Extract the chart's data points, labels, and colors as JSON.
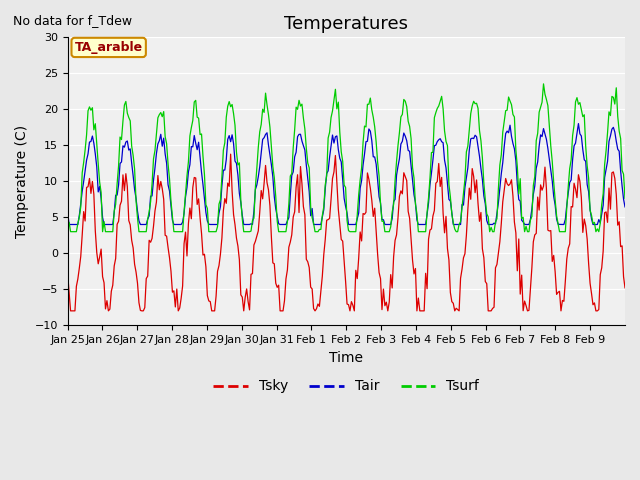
{
  "title": "Temperatures",
  "xlabel": "Time",
  "ylabel": "Temperature (C)",
  "annotation": "No data for f_Tdew",
  "box_label": "TA_arable",
  "ylim": [
    -10,
    30
  ],
  "xtick_labels": [
    "Jan 25",
    "Jan 26",
    "Jan 27",
    "Jan 28",
    "Jan 29",
    "Jan 30",
    "Jan 31",
    "Feb 1",
    "Feb 2",
    "Feb 3",
    "Feb 4",
    "Feb 5",
    "Feb 6",
    "Feb 7",
    "Feb 8",
    "Feb 9"
  ],
  "background_color": "#e8e8e8",
  "plot_bg_color": "#f0f0f0",
  "colors": {
    "Tsky": "#dd0000",
    "Tair": "#0000cc",
    "Tsurf": "#00cc00"
  },
  "title_fontsize": 13,
  "axis_fontsize": 10,
  "tick_fontsize": 8
}
